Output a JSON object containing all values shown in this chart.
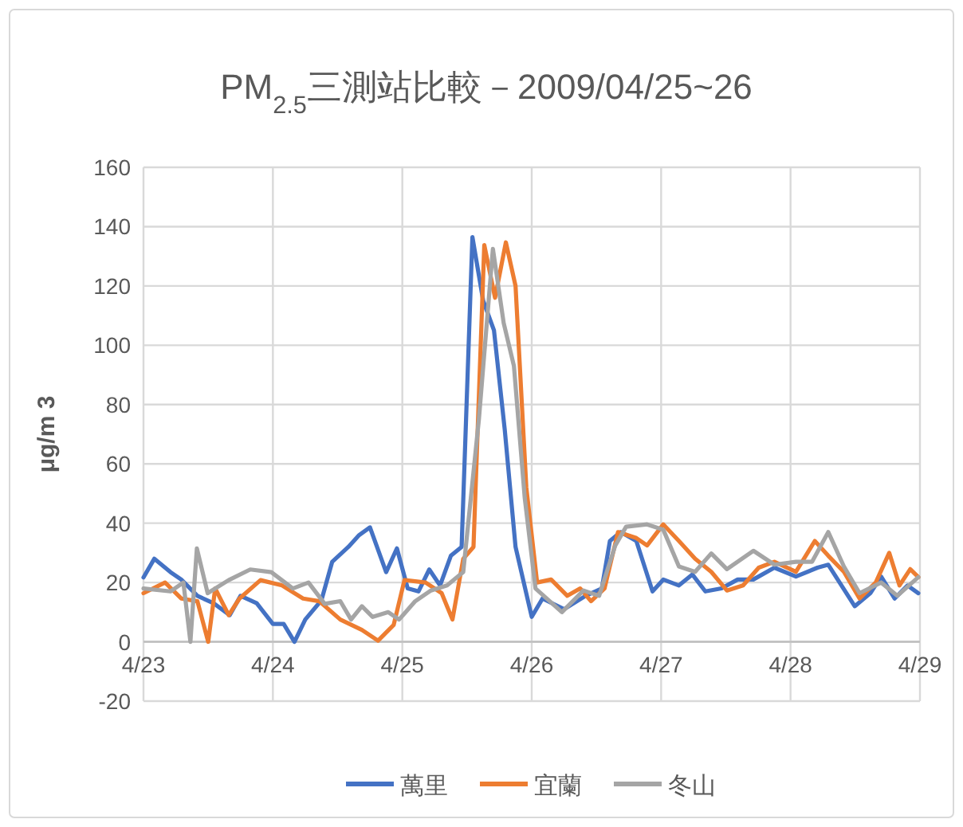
{
  "chart_data": {
    "type": "line",
    "title": "PM$_{2.5}$三測站比較－2009/04/25~26",
    "ylabel": "μg/m 3",
    "xlim": [
      "2009-04-23",
      "2009-04-29"
    ],
    "xticks": [
      {
        "value": "2009-04-23",
        "label": "4/23"
      },
      {
        "value": "2009-04-24",
        "label": "4/24"
      },
      {
        "value": "2009-04-25",
        "label": "4/25"
      },
      {
        "value": "2009-04-26",
        "label": "4/26"
      },
      {
        "value": "2009-04-27",
        "label": "4/27"
      },
      {
        "value": "2009-04-28",
        "label": "4/28"
      },
      {
        "value": "2009-04-29",
        "label": "4/29"
      }
    ],
    "ylim": [
      -20,
      160
    ],
    "yticks": [
      -20,
      0,
      20,
      40,
      60,
      80,
      100,
      120,
      140,
      160
    ],
    "grid": true,
    "legend": "bottom",
    "series": [
      {
        "name": "萬里",
        "color": "#4472c4",
        "x": [
          "2009-04-23T00:00",
          "2009-04-23T02:00",
          "2009-04-23T05:00",
          "2009-04-23T07:00",
          "2009-04-23T10:00",
          "2009-04-23T13:00",
          "2009-04-23T16:00",
          "2009-04-23T18:00",
          "2009-04-23T21:00",
          "2009-04-24T00:00",
          "2009-04-24T02:00",
          "2009-04-24T04:00",
          "2009-04-24T06:00",
          "2009-04-24T09:00",
          "2009-04-24T11:00",
          "2009-04-24T14:00",
          "2009-04-24T16:00",
          "2009-04-24T18:00",
          "2009-04-24T21:00",
          "2009-04-24T23:00",
          "2009-04-25T01:00",
          "2009-04-25T03:00",
          "2009-04-25T05:00",
          "2009-04-25T07:00",
          "2009-04-25T09:00",
          "2009-04-25T11:00",
          "2009-04-25T13:00",
          "2009-04-25T15:00",
          "2009-04-25T17:00",
          "2009-04-25T19:00",
          "2009-04-25T21:00",
          "2009-04-26T00:00",
          "2009-04-26T02:00",
          "2009-04-26T06:00",
          "2009-04-26T10:00",
          "2009-04-26T13:00",
          "2009-04-26T14:30",
          "2009-04-26T16:30",
          "2009-04-26T19:24",
          "2009-04-26T22:24",
          "2009-04-27T00:24",
          "2009-04-27T03:18",
          "2009-04-27T05:48",
          "2009-04-27T08:12",
          "2009-04-27T11:12",
          "2009-04-27T14:12",
          "2009-04-27T17:06",
          "2009-04-27T21:00",
          "2009-04-28T01:00",
          "2009-04-28T05:00",
          "2009-04-28T07:00",
          "2009-04-28T11:54",
          "2009-04-28T14:48",
          "2009-04-28T16:48",
          "2009-04-28T19:18",
          "2009-04-28T21:42",
          "2009-04-28T23:42"
        ],
        "values": [
          21.7,
          28,
          23.5,
          21,
          15.5,
          13,
          9,
          15.5,
          13,
          6,
          6,
          0,
          7.5,
          14,
          27,
          32,
          36,
          38.6,
          23.5,
          31.5,
          18,
          17,
          24.4,
          19,
          29,
          32,
          136.5,
          115,
          105,
          71.5,
          32,
          8.4,
          14.6,
          11,
          15.5,
          18,
          34,
          37,
          34,
          17,
          21,
          19,
          22.7,
          17,
          18,
          21,
          21,
          25,
          22,
          25,
          26,
          12,
          16.4,
          22,
          14.6,
          19,
          16.4
        ]
      },
      {
        "name": "宜蘭",
        "color": "#ed7d31",
        "x": [
          "2009-04-23T00:00",
          "2009-04-23T04:00",
          "2009-04-23T07:00",
          "2009-04-23T10:00",
          "2009-04-23T12:00",
          "2009-04-23T13:18",
          "2009-04-23T15:48",
          "2009-04-23T17:48",
          "2009-04-23T21:42",
          "2009-04-24T01:42",
          "2009-04-24T05:36",
          "2009-04-24T08:36",
          "2009-04-24T12:30",
          "2009-04-24T16:30",
          "2009-04-24T19:30",
          "2009-04-24T22:24",
          "2009-04-25T00:24",
          "2009-04-25T04:18",
          "2009-04-25T07:18",
          "2009-04-25T09:18",
          "2009-04-25T11:18",
          "2009-04-25T13:12",
          "2009-04-25T15:12",
          "2009-04-25T17:12",
          "2009-04-25T19:12",
          "2009-04-25T21:00",
          "2009-04-25T23:00",
          "2009-04-26T01:00",
          "2009-04-26T03:36",
          "2009-04-26T06:36",
          "2009-04-26T09:00",
          "2009-04-26T11:00",
          "2009-04-26T13:30",
          "2009-04-26T16:00",
          "2009-04-26T19:24",
          "2009-04-26T21:24",
          "2009-04-27T00:24",
          "2009-04-27T03:18",
          "2009-04-27T06:18",
          "2009-04-27T09:18",
          "2009-04-27T12:12",
          "2009-04-27T15:12",
          "2009-04-27T18:06",
          "2009-04-27T21:00",
          "2009-04-28T01:00",
          "2009-04-28T04:30",
          "2009-04-28T07:00",
          "2009-04-28T09:54",
          "2009-04-28T12:48",
          "2009-04-28T15:48",
          "2009-04-28T18:18",
          "2009-04-28T20:12",
          "2009-04-28T22:12",
          "2009-04-28T23:42"
        ],
        "values": [
          16.4,
          20,
          14.6,
          13.7,
          0,
          18,
          9,
          14.6,
          20.8,
          19,
          14.6,
          13.7,
          7.5,
          4,
          0.4,
          5.7,
          20.8,
          20,
          16.4,
          7.5,
          28,
          32,
          133.8,
          116,
          134.7,
          120,
          52,
          20,
          21,
          15.5,
          18,
          13.7,
          18,
          37,
          35,
          32.5,
          39.6,
          34,
          28,
          23.6,
          17.3,
          19,
          25,
          27,
          23.6,
          34,
          29,
          23.6,
          14.6,
          20,
          30,
          19,
          24.5,
          21.8
        ]
      },
      {
        "name": "冬山",
        "color": "#a5a5a5",
        "x": [
          "2009-04-23T00:00",
          "2009-04-23T05:00",
          "2009-04-23T07:24",
          "2009-04-23T08:42",
          "2009-04-23T09:54",
          "2009-04-23T11:54",
          "2009-04-23T15:48",
          "2009-04-23T19:48",
          "2009-04-23T23:42",
          "2009-04-24T03:42",
          "2009-04-24T06:36",
          "2009-04-24T09:36",
          "2009-04-24T12:30",
          "2009-04-24T14:30",
          "2009-04-24T16:30",
          "2009-04-24T18:30",
          "2009-04-24T21:24",
          "2009-04-24T23:24",
          "2009-04-25T02:24",
          "2009-04-25T05:18",
          "2009-04-25T08:18",
          "2009-04-25T11:18",
          "2009-04-25T14:12",
          "2009-04-25T16:48",
          "2009-04-25T18:48",
          "2009-04-25T20:42",
          "2009-04-25T22:42",
          "2009-04-26T00:42",
          "2009-04-26T05:36",
          "2009-04-26T09:36",
          "2009-04-26T12:30",
          "2009-04-26T15:30",
          "2009-04-26T17:30",
          "2009-04-26T21:24",
          "2009-04-27T00:24",
          "2009-04-27T03:18",
          "2009-04-27T06:18",
          "2009-04-27T09:18",
          "2009-04-27T12:12",
          "2009-04-27T17:06",
          "2009-04-27T21:00",
          "2009-04-28T01:00",
          "2009-04-28T04:00",
          "2009-04-28T07:00",
          "2009-04-28T09:54",
          "2009-04-28T12:48",
          "2009-04-28T16:48",
          "2009-04-28T19:48",
          "2009-04-28T23:42"
        ],
        "values": [
          18,
          17,
          20,
          0,
          31.5,
          16.4,
          20.8,
          24.4,
          23.5,
          18,
          20,
          12.8,
          13.7,
          7.5,
          12,
          8.4,
          10,
          7.5,
          13.7,
          17.3,
          19,
          23.5,
          75,
          132.5,
          107.5,
          93,
          48.6,
          18,
          10,
          17.3,
          15.5,
          32.5,
          38.8,
          39.6,
          37.8,
          25.4,
          23.6,
          29.8,
          24.5,
          30.7,
          26,
          27,
          27,
          37,
          25.4,
          16.4,
          20,
          15.5,
          21.8
        ]
      }
    ]
  }
}
